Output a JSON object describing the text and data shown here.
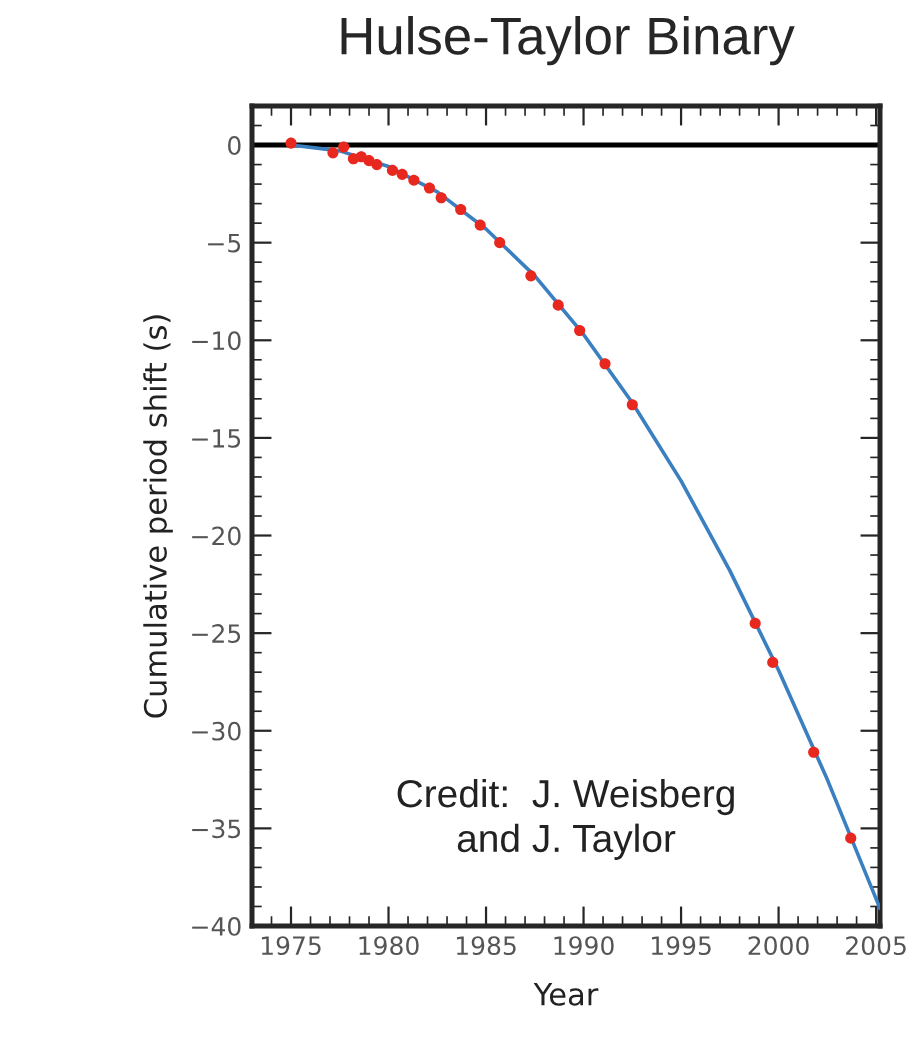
{
  "chart_data": {
    "type": "scatter",
    "title": "Hulse-Taylor Binary",
    "xlabel": "Year",
    "ylabel": "Cumulative period shift (s)",
    "series": [
      {
        "marker": "circle",
        "color": "#e8281e",
        "x": [
          1975.0,
          1977.15,
          1977.7,
          1978.2,
          1978.6,
          1979.0,
          1979.4,
          1980.2,
          1980.7,
          1981.3,
          1982.1,
          1982.7,
          1983.7,
          1984.7,
          1985.7,
          1987.3,
          1988.7,
          1989.8,
          1991.1,
          1992.5,
          1998.8,
          1999.7,
          2001.8,
          2003.7
        ],
        "values": [
          0.1,
          -0.4,
          -0.1,
          -0.7,
          -0.6,
          -0.8,
          -1.0,
          -1.3,
          -1.5,
          -1.8,
          -2.2,
          -2.7,
          -3.3,
          -4.1,
          -5.0,
          -6.7,
          -8.2,
          -9.5,
          -11.2,
          -13.3,
          -24.5,
          -26.5,
          -31.1,
          -35.5
        ]
      },
      {
        "type": "line",
        "marker": "none",
        "color": "#3a7fc0",
        "x": [
          1975,
          1977.5,
          1980,
          1982.5,
          1985,
          1987.5,
          1990,
          1992.5,
          1995,
          1997.5,
          2000,
          2002.5,
          2005.2
        ],
        "values": [
          0,
          -0.3,
          -1.1,
          -2.4,
          -4.3,
          -6.7,
          -9.7,
          -13.2,
          -17.2,
          -21.8,
          -26.9,
          -32.5,
          -39.1
        ]
      }
    ],
    "xlim": [
      1973,
      2005.2
    ],
    "ylim": [
      -40,
      2
    ],
    "xticks": [
      1975,
      1980,
      1985,
      1990,
      1995,
      2000,
      2005
    ],
    "yticks": [
      0,
      {
        "value": -5,
        "label": "−5"
      },
      {
        "value": -10,
        "label": "−10"
      },
      {
        "value": -15,
        "label": "−15"
      },
      {
        "value": -20,
        "label": "−20"
      },
      {
        "value": -25,
        "label": "−25"
      },
      {
        "value": -30,
        "label": "−30"
      },
      {
        "value": -35,
        "label": "−35"
      },
      {
        "value": -40,
        "label": "−40"
      }
    ],
    "ref_lines": [
      {
        "axis": "y",
        "value": 0,
        "color": "#000000"
      }
    ],
    "annotations": [
      "Credit:  J. Weisberg\nand J. Taylor"
    ],
    "grid": false,
    "legend": false
  }
}
